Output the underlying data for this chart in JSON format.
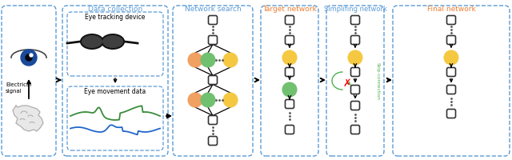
{
  "title_data_collection": "Data collection",
  "title_network_search": "Network search",
  "title_target_network": "Target network",
  "title_simplifying": "Simplifing network",
  "title_final": "Final network",
  "label_electrical": "Electrical\nsignal",
  "label_eye_device": "Eye tracking device",
  "label_eye_data": "Eye movement data",
  "label_skip": "Skip-connection",
  "color_title_blue": "#5B9BD5",
  "color_title_orange": "#ED7D31",
  "color_node_orange": "#F0A060",
  "color_node_green": "#70C070",
  "color_node_yellow": "#F5C842",
  "color_box": "#404040",
  "color_dashed_border": "#5B9BD5",
  "color_arrow": "#202020",
  "bg_color": "#FFFFFF"
}
